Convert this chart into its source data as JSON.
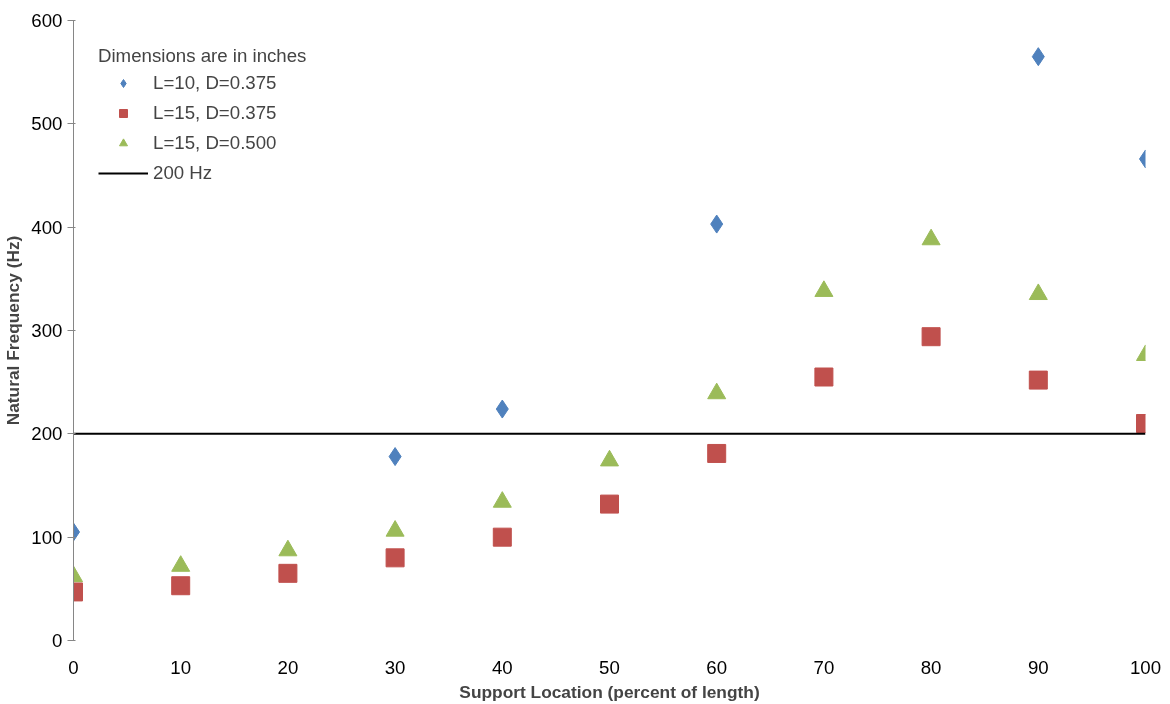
{
  "chart_data": {
    "type": "scatter",
    "xlabel": "Support Location (percent of length)",
    "ylabel": "Natural Frequency (Hz)",
    "legend_title": "Dimensions are in inches",
    "legend": "top left",
    "grid": false,
    "xlim": [
      0,
      100
    ],
    "xticks": [
      0,
      10,
      20,
      30,
      40,
      50,
      60,
      70,
      80,
      90,
      100
    ],
    "ylim": [
      0,
      600
    ],
    "yticks": [
      0,
      100,
      200,
      300,
      400,
      500,
      600
    ],
    "series": [
      {
        "name": "L=10, D=0.375",
        "color": "#4f81bd",
        "marker": "diamond",
        "x": [
          0,
          30,
          40,
          60,
          90,
          100
        ],
        "values": [
          105,
          178,
          224,
          403,
          565,
          466
        ]
      },
      {
        "name": "L=15, D=0.375",
        "color": "#c0504d",
        "marker": "square",
        "x": [
          0,
          10,
          20,
          30,
          40,
          50,
          60,
          70,
          80,
          90,
          100
        ],
        "values": [
          47,
          53,
          65,
          80,
          100,
          132,
          181,
          255,
          294,
          252,
          210
        ]
      },
      {
        "name": "L=15, D=0.500",
        "color": "#9bbb59",
        "marker": "triangle",
        "x": [
          0,
          10,
          20,
          30,
          40,
          50,
          60,
          70,
          80,
          90,
          100
        ],
        "values": [
          62,
          72,
          87,
          106,
          134,
          174,
          239,
          338,
          388,
          335,
          276
        ]
      }
    ],
    "ref_lines": [
      {
        "axis": "y",
        "value": 200,
        "label": "200 Hz",
        "color": "#000000",
        "line_style": "solid"
      }
    ]
  }
}
